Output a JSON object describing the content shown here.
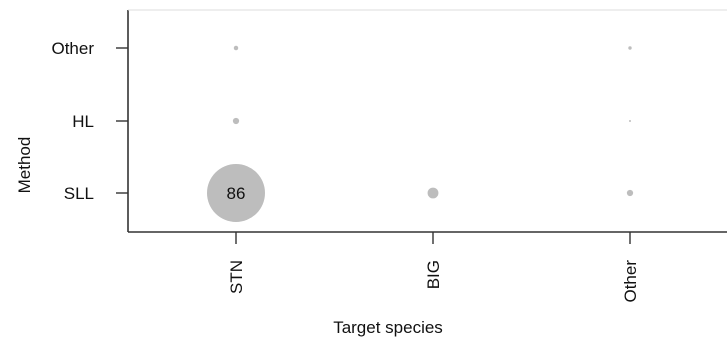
{
  "chart_data": {
    "type": "scatter",
    "xlabel": "Target species",
    "ylabel": "Method",
    "x_categories": [
      "STN",
      "BIG",
      "Other"
    ],
    "y_categories": [
      "SLL",
      "HL",
      "Other"
    ],
    "points": [
      {
        "x": "STN",
        "y": "SLL",
        "value": 86,
        "label": "86"
      },
      {
        "x": "BIG",
        "y": "SLL",
        "value": 3
      },
      {
        "x": "Other",
        "y": "SLL",
        "value": 1
      },
      {
        "x": "STN",
        "y": "HL",
        "value": 1
      },
      {
        "x": "Other",
        "y": "HL",
        "value": 0.05
      },
      {
        "x": "STN",
        "y": "Other",
        "value": 0.5
      },
      {
        "x": "Other",
        "y": "Other",
        "value": 0.3
      }
    ],
    "grid": false,
    "legend": "none",
    "colors": {
      "bubble": "#bdbdbd",
      "axis": "#333333",
      "text": "#111111"
    }
  }
}
